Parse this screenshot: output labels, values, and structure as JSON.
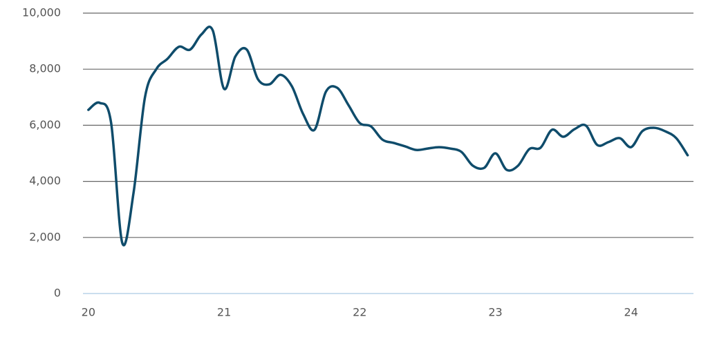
{
  "chart_data": {
    "type": "line",
    "x": [
      20,
      20.083,
      20.167,
      20.25,
      20.333,
      20.417,
      20.5,
      20.583,
      20.667,
      20.75,
      20.833,
      20.917,
      21,
      21.083,
      21.167,
      21.25,
      21.333,
      21.417,
      21.5,
      21.583,
      21.667,
      21.75,
      21.833,
      21.917,
      22,
      22.083,
      22.167,
      22.25,
      22.333,
      22.417,
      22.5,
      22.583,
      22.667,
      22.75,
      22.833,
      22.917,
      23,
      23.083,
      23.167,
      23.25,
      23.333,
      23.417,
      23.5,
      23.583,
      23.667,
      23.75,
      23.833,
      23.917,
      24,
      24.083,
      24.167,
      24.25,
      24.333,
      24.417
    ],
    "series": [
      {
        "color": "#0f4c6b",
        "values": [
          6550,
          6800,
          6100,
          1800,
          3600,
          7000,
          8000,
          8370,
          8800,
          8700,
          9240,
          9380,
          7300,
          8450,
          8700,
          7640,
          7460,
          7800,
          7390,
          6400,
          5840,
          7190,
          7340,
          6720,
          6080,
          5960,
          5490,
          5370,
          5250,
          5120,
          5170,
          5220,
          5170,
          5050,
          4560,
          4480,
          5000,
          4410,
          4560,
          5150,
          5200,
          5840,
          5590,
          5860,
          5990,
          5300,
          5400,
          5540,
          5220,
          5790,
          5910,
          5790,
          5540,
          4930
        ]
      }
    ],
    "xlim": [
      19.96,
      24.46
    ],
    "xticks": [
      20,
      21,
      22,
      23,
      24
    ],
    "ylim": [
      0,
      10000
    ],
    "yticks": [
      0,
      {
        "value": 2000,
        "label": "2,000"
      },
      {
        "value": 4000,
        "label": "4,000"
      },
      {
        "value": 6000,
        "label": "6,000"
      },
      {
        "value": 8000,
        "label": "8,000"
      },
      {
        "value": 10000,
        "label": "10,000"
      }
    ],
    "grid": true
  }
}
